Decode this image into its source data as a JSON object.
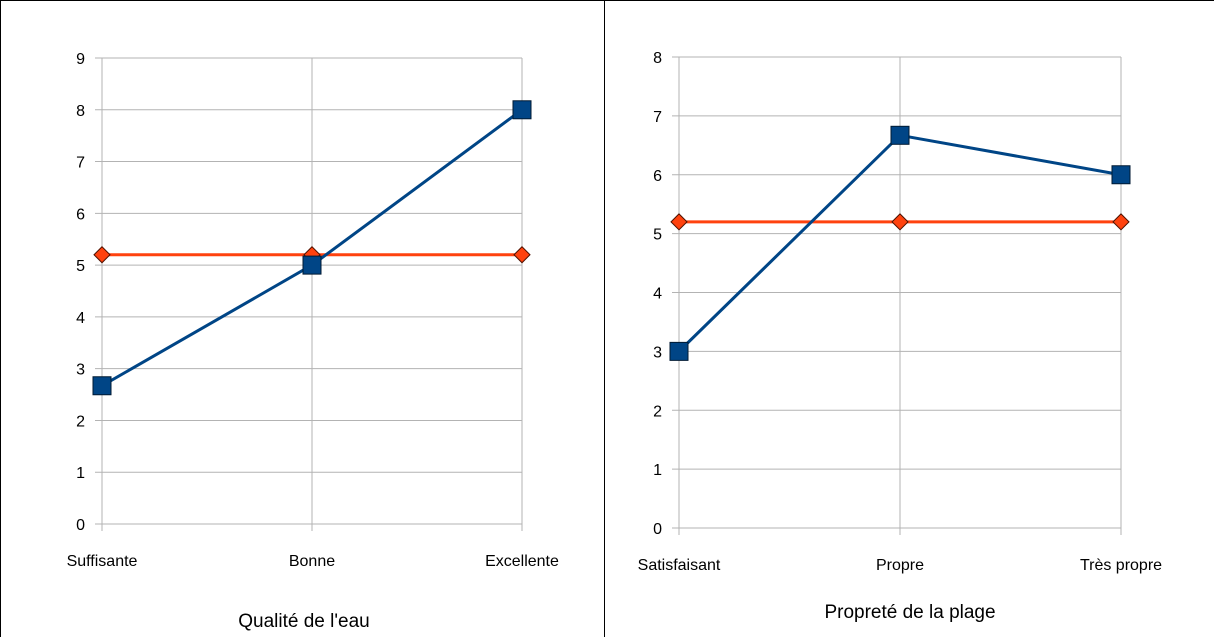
{
  "chart_data": [
    {
      "type": "line",
      "title": "",
      "xlabel": "Qualité de l'eau",
      "ylabel": "",
      "categories": [
        "Suffisante",
        "Bonne",
        "Excellente"
      ],
      "ylim": [
        0,
        9
      ],
      "yticks": [
        0,
        1,
        2,
        3,
        4,
        5,
        6,
        7,
        8,
        9
      ],
      "grid": true,
      "legend": "none",
      "series": [
        {
          "values": [
            2.67,
            5.0,
            8.0
          ],
          "color": "#004586",
          "marker": "square"
        },
        {
          "values": [
            5.2,
            5.2,
            5.2
          ],
          "color": "#FF420E",
          "marker": "diamond"
        }
      ]
    },
    {
      "type": "line",
      "title": "",
      "xlabel": "Propreté de la plage",
      "ylabel": "",
      "categories": [
        "Satisfaisant",
        "Propre",
        "Très propre"
      ],
      "ylim": [
        0,
        8
      ],
      "yticks": [
        0,
        1,
        2,
        3,
        4,
        5,
        6,
        7,
        8
      ],
      "grid": true,
      "legend": "none",
      "series": [
        {
          "values": [
            3.0,
            6.67,
            6.0
          ],
          "color": "#004586",
          "marker": "square"
        },
        {
          "values": [
            5.2,
            5.2,
            5.2
          ],
          "color": "#FF420E",
          "marker": "diamond"
        }
      ]
    }
  ]
}
